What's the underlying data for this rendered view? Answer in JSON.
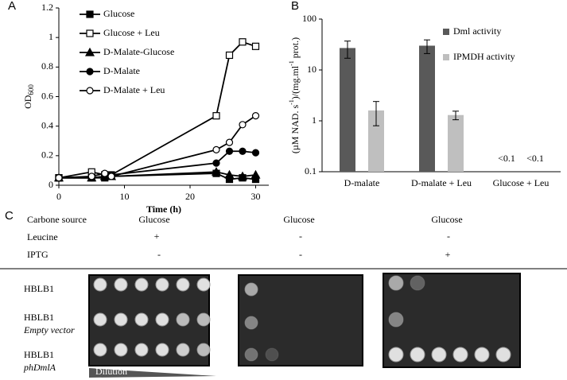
{
  "chart_data": [
    {
      "type": "line",
      "panel": "A",
      "xlabel": "Time (h)",
      "ylabel": "OD",
      "ylabel_sub": "600",
      "xlim": [
        0,
        32
      ],
      "xticks": [
        0,
        10,
        20,
        30
      ],
      "ylim": [
        0,
        1.2
      ],
      "yticks": [
        0,
        0.2,
        0.4,
        0.6,
        0.8,
        1,
        1.2
      ],
      "legend": "upper left",
      "x": [
        0,
        5,
        7,
        8,
        24,
        26,
        28,
        30
      ],
      "series": [
        {
          "name": "Glucose",
          "color": "#000000",
          "marker": "square",
          "filled": true,
          "values": [
            0.05,
            0.05,
            0.05,
            0.06,
            0.08,
            0.04,
            0.05,
            0.04
          ]
        },
        {
          "name": "Glucose + Leu",
          "color": "#000000",
          "marker": "square",
          "filled": false,
          "values": [
            0.05,
            0.09,
            0.07,
            0.07,
            0.47,
            0.88,
            0.97,
            0.94
          ]
        },
        {
          "name": "D-Malate-Glucose",
          "color": "#000000",
          "marker": "triangle",
          "filled": true,
          "values": [
            0.05,
            0.05,
            0.06,
            0.06,
            0.09,
            0.07,
            0.06,
            0.07
          ]
        },
        {
          "name": "D-Malate",
          "color": "#000000",
          "marker": "circle",
          "filled": true,
          "values": [
            0.05,
            0.05,
            0.06,
            0.07,
            0.15,
            0.23,
            0.23,
            0.22
          ]
        },
        {
          "name": "D-Malate + Leu",
          "color": "#000000",
          "marker": "circle",
          "filled": false,
          "values": [
            0.05,
            0.06,
            0.08,
            0.06,
            0.24,
            0.29,
            0.41,
            0.47
          ]
        }
      ]
    },
    {
      "type": "bar",
      "panel": "B",
      "log_scale": true,
      "legend": "upper right",
      "ylabel": [
        {
          "text": "(µM NAD. s"
        },
        {
          "text": "-1",
          "sup": true
        },
        {
          "text": ")/(mg.ml"
        },
        {
          "text": "-1",
          "sup": true
        },
        {
          "text": " prot.)"
        }
      ],
      "ylim": [
        0.1,
        100
      ],
      "yticks": [
        0.1,
        1,
        10,
        100
      ],
      "categories": [
        "D-malate",
        "D-malate + Leu",
        "Glucose + Leu"
      ],
      "series": [
        {
          "name": "Dml activity",
          "color": "#595959",
          "values": [
            27,
            30,
            null
          ],
          "errors": [
            10,
            9,
            null
          ],
          "value_labels": [
            null,
            null,
            "<0.1"
          ]
        },
        {
          "name": "IPMDH activity",
          "color": "#bfbfbf",
          "values": [
            1.6,
            1.3,
            null
          ],
          "errors": [
            0.8,
            0.25,
            null
          ],
          "value_labels": [
            null,
            null,
            "<0.1"
          ]
        }
      ]
    }
  ],
  "panel_c": {
    "label": "C",
    "header": {
      "rows": [
        [
          "Carbone source",
          "Glucose",
          "Glucose",
          "Glucose"
        ],
        [
          "Leucine",
          "+",
          "-",
          "-"
        ],
        [
          "IPTG",
          "-",
          "-",
          "+"
        ]
      ]
    },
    "strains": [
      {
        "name": "HBLB1"
      },
      {
        "name": "HBLB1",
        "note": "Empty vector"
      },
      {
        "name": "HBLB1",
        "note": "phDmlA"
      }
    ],
    "dilution": "Dilution"
  }
}
